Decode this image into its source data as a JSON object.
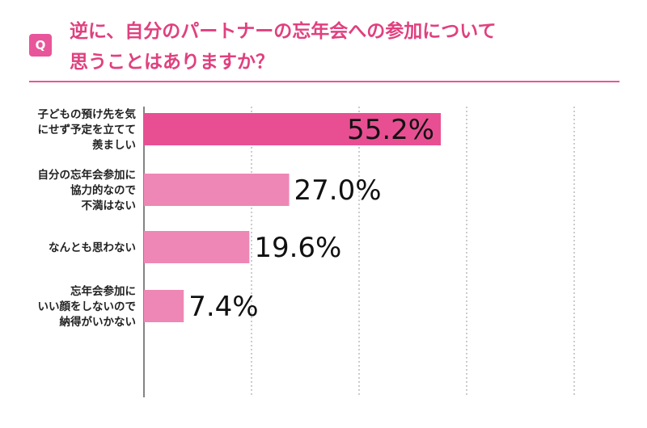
{
  "header": {
    "badge": "Q",
    "title_line1": "逆に、自分のパートナーの忘年会への参加について",
    "title_line2": "思うことはありますか？"
  },
  "colors": {
    "accent": "#e8559a",
    "bar_top": "#e84f92",
    "bar_other": "#ee87b5"
  },
  "chart_data": {
    "type": "bar",
    "orientation": "horizontal",
    "categories": [
      [
        "子どもの預け先を気",
        "にせず予定を立てて",
        "羨ましい"
      ],
      [
        "自分の忘年会参加に",
        "協力的なので",
        "不満はない"
      ],
      [
        "なんとも思わない"
      ],
      [
        "忘年会参加に",
        "いい顔をしないので",
        "納得がいかない"
      ]
    ],
    "values": [
      55.2,
      27.0,
      19.6,
      7.4
    ],
    "value_labels": [
      "55.2%",
      "27.0%",
      "19.6%",
      "7.4%"
    ],
    "xlim": [
      0,
      80
    ],
    "grid": "vertical-dotted"
  }
}
